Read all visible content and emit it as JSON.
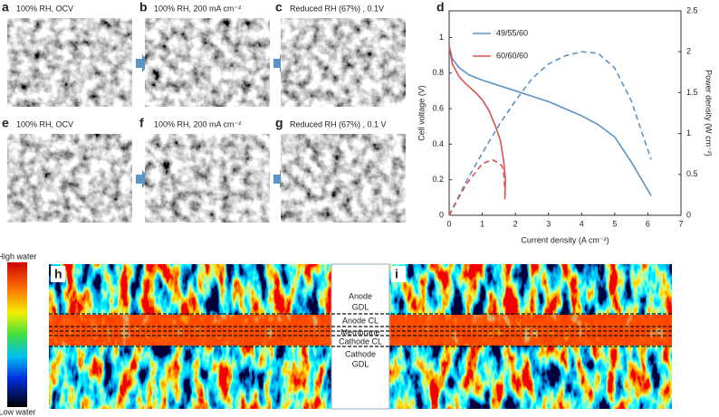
{
  "panels": [
    {
      "letter": "a",
      "caption": "100% RH, OCV"
    },
    {
      "letter": "b",
      "caption": "100% RH, 200 mA cm⁻²"
    },
    {
      "letter": "c",
      "caption": "Reduced RH (67%) , 0.1V"
    },
    {
      "letter": "e",
      "caption": "100% RH, OCV"
    },
    {
      "letter": "f",
      "caption": "100% RH, 200 mA cm⁻²"
    },
    {
      "letter": "g",
      "caption": "Reduced RH (67%) , 0.1 V"
    }
  ],
  "chart_panel": "d",
  "chart_data": {
    "type": "line",
    "x_label": "Current density (A cm⁻²)",
    "y_label": "Cell voltage (V)",
    "y2_label": "Power density (W cm⁻²)",
    "xlim": [
      0,
      7
    ],
    "xticks": [
      0,
      1,
      2,
      3,
      4,
      5,
      6,
      7
    ],
    "ylim": [
      0,
      1.15
    ],
    "yticks": [
      0,
      0.2,
      0.4,
      0.6,
      0.8,
      1
    ],
    "y2lim": [
      0,
      2.5
    ],
    "y2ticks": [
      0,
      0.5,
      1,
      1.5,
      2,
      2.5
    ],
    "series": [
      {
        "name": "49/55/60",
        "color": "#5b93c7",
        "linestyle": "solid",
        "x": [
          0,
          0.1,
          0.3,
          0.6,
          1,
          1.5,
          2,
          2.5,
          3,
          3.5,
          4,
          4.5,
          5,
          5.5,
          6.1
        ],
        "values": [
          0.95,
          0.88,
          0.83,
          0.79,
          0.76,
          0.73,
          0.7,
          0.67,
          0.64,
          0.6,
          0.56,
          0.51,
          0.44,
          0.3,
          0.11
        ]
      },
      {
        "color": "#5b93c7",
        "linestyle": "dashed",
        "axis": "y2",
        "x": [
          0,
          0.5,
          1,
          1.5,
          2,
          2.5,
          3,
          3.5,
          4,
          4.5,
          5,
          5.5,
          6.1
        ],
        "values": [
          0,
          0.4,
          0.76,
          1.1,
          1.4,
          1.67,
          1.85,
          1.95,
          2.0,
          1.98,
          1.8,
          1.4,
          0.68
        ]
      },
      {
        "name": "60/60/60",
        "color": "#d9534f",
        "linestyle": "solid",
        "x": [
          0,
          0.1,
          0.3,
          0.5,
          0.8,
          1,
          1.2,
          1.4,
          1.55,
          1.65,
          1.7,
          1.68
        ],
        "values": [
          0.95,
          0.85,
          0.78,
          0.74,
          0.69,
          0.65,
          0.59,
          0.5,
          0.42,
          0.3,
          0.2,
          0.09
        ]
      },
      {
        "color": "#d9534f",
        "linestyle": "dashed",
        "axis": "y2",
        "x": [
          0,
          0.5,
          1,
          1.3,
          1.5,
          1.6,
          1.65,
          1.7
        ],
        "values": [
          0,
          0.37,
          0.63,
          0.68,
          0.64,
          0.6,
          0.5,
          0.2
        ]
      }
    ]
  },
  "colorbar": {
    "high": "High water",
    "low": "Low water"
  },
  "heatmaps": {
    "letters": [
      "h",
      "i"
    ],
    "layers": [
      [
        "Anode",
        "GDL"
      ],
      [
        "Anode CL"
      ],
      [
        "Membrane"
      ],
      [
        "Cathode CL"
      ],
      [
        "Cathode",
        "GDL"
      ]
    ]
  }
}
